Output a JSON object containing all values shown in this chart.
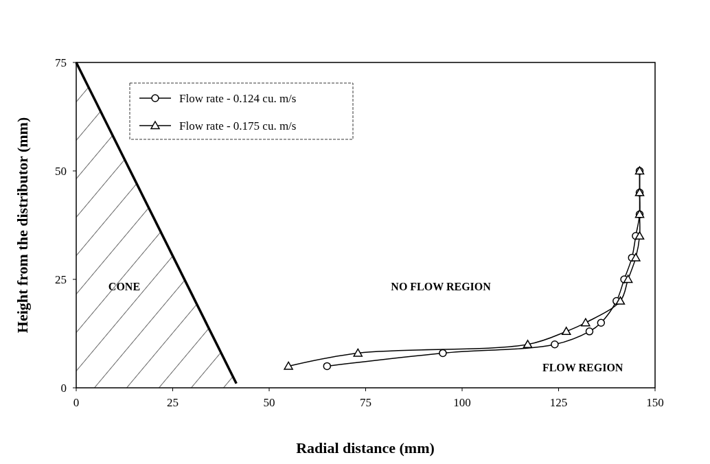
{
  "chart_data": {
    "type": "line",
    "xlabel": "Radial distance (mm)",
    "ylabel": "Height from the distributor (mm)",
    "xlim": [
      0,
      150
    ],
    "ylim": [
      0,
      75
    ],
    "xticks": [
      0,
      25,
      50,
      75,
      100,
      125,
      150
    ],
    "yticks": [
      0,
      25,
      50,
      75
    ],
    "grid": false,
    "legend": "top left",
    "series": [
      {
        "name": "Flow rate - 0.124 cu. m/s",
        "color": "#000000",
        "marker": "circle",
        "x": [
          65,
          95,
          124,
          133,
          136,
          140,
          142,
          144,
          145,
          146,
          146,
          146
        ],
        "values": [
          5,
          8,
          10,
          13,
          15,
          20,
          25,
          30,
          35,
          40,
          45,
          50
        ]
      },
      {
        "name": "Flow rate -  0.175 cu. m/s",
        "color": "#000000",
        "marker": "triangle",
        "x": [
          55,
          73,
          117,
          127,
          132,
          141,
          143,
          145,
          146,
          146,
          146,
          146
        ],
        "values": [
          5,
          8,
          10,
          13,
          15,
          20,
          25,
          30,
          35,
          40,
          45,
          50
        ]
      },
      {
        "type": "area",
        "color": "#000000",
        "x": [
          0,
          41.5
        ],
        "values": [
          75,
          1
        ]
      }
    ],
    "annotations": [
      "CONE",
      "NO FLOW REGION",
      "FLOW REGION"
    ]
  }
}
